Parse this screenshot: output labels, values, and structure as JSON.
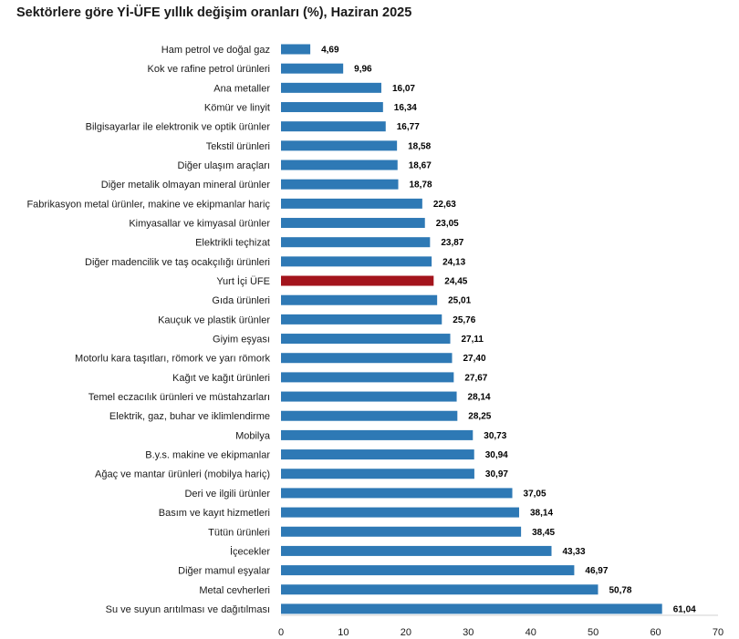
{
  "chart_data": {
    "type": "bar",
    "orientation": "horizontal",
    "title": "Sektörlere göre Yİ-ÜFE yıllık değişim oranları (%), Haziran 2025",
    "categories": [
      "Ham petrol ve doğal gaz",
      "Kok ve rafine petrol ürünleri",
      "Ana metaller",
      "Kömür ve linyit",
      "Bilgisayarlar ile elektronik ve optik ürünler",
      "Tekstil ürünleri",
      "Diğer ulaşım araçları",
      "Diğer metalik olmayan mineral ürünler",
      "Fabrikasyon metal ürünler, makine ve ekipmanlar hariç",
      "Kimyasallar ve kimyasal ürünler",
      "Elektrikli teçhizat",
      "Diğer madencilik ve taş ocakçılığı ürünleri",
      "Yurt İçi ÜFE",
      "Gıda ürünleri",
      "Kauçuk ve plastik ürünler",
      "Giyim eşyası",
      "Motorlu kara taşıtları, römork ve yarı römork",
      "Kağıt ve kağıt ürünleri",
      "Temel eczacılık ürünleri ve müstahzarları",
      "Elektrik, gaz, buhar ve iklimlendirme",
      "Mobilya",
      "B.y.s. makine ve ekipmanlar",
      "Ağaç ve mantar ürünleri (mobilya hariç)",
      "Deri ve ilgili ürünler",
      "Basım ve kayıt hizmetleri",
      "Tütün ürünleri",
      "İçecekler",
      "Diğer mamul eşyalar",
      "Metal cevherleri",
      "Su ve suyun arıtılması ve dağıtılması"
    ],
    "values": [
      4.69,
      9.96,
      16.07,
      16.34,
      16.77,
      18.58,
      18.67,
      18.78,
      22.63,
      23.05,
      23.87,
      24.13,
      24.45,
      25.01,
      25.76,
      27.11,
      27.4,
      27.67,
      28.14,
      28.25,
      30.73,
      30.94,
      30.97,
      37.05,
      38.14,
      38.45,
      43.33,
      46.97,
      50.78,
      61.04
    ],
    "value_labels": [
      "4,69",
      "9,96",
      "16,07",
      "16,34",
      "16,77",
      "18,58",
      "18,67",
      "18,78",
      "22,63",
      "23,05",
      "23,87",
      "24,13",
      "24,45",
      "25,01",
      "25,76",
      "27,11",
      "27,40",
      "27,67",
      "28,14",
      "28,25",
      "30,73",
      "30,94",
      "30,97",
      "37,05",
      "38,14",
      "38,45",
      "43,33",
      "46,97",
      "50,78",
      "61,04"
    ],
    "highlight_category": "Yurt İçi ÜFE",
    "xlim": [
      0,
      70
    ],
    "xticks": [
      0,
      10,
      20,
      30,
      40,
      50,
      60,
      70
    ],
    "grid": false,
    "legend": "none",
    "colors": {
      "bar": "#2e79b5",
      "highlight": "#a3141c"
    }
  }
}
